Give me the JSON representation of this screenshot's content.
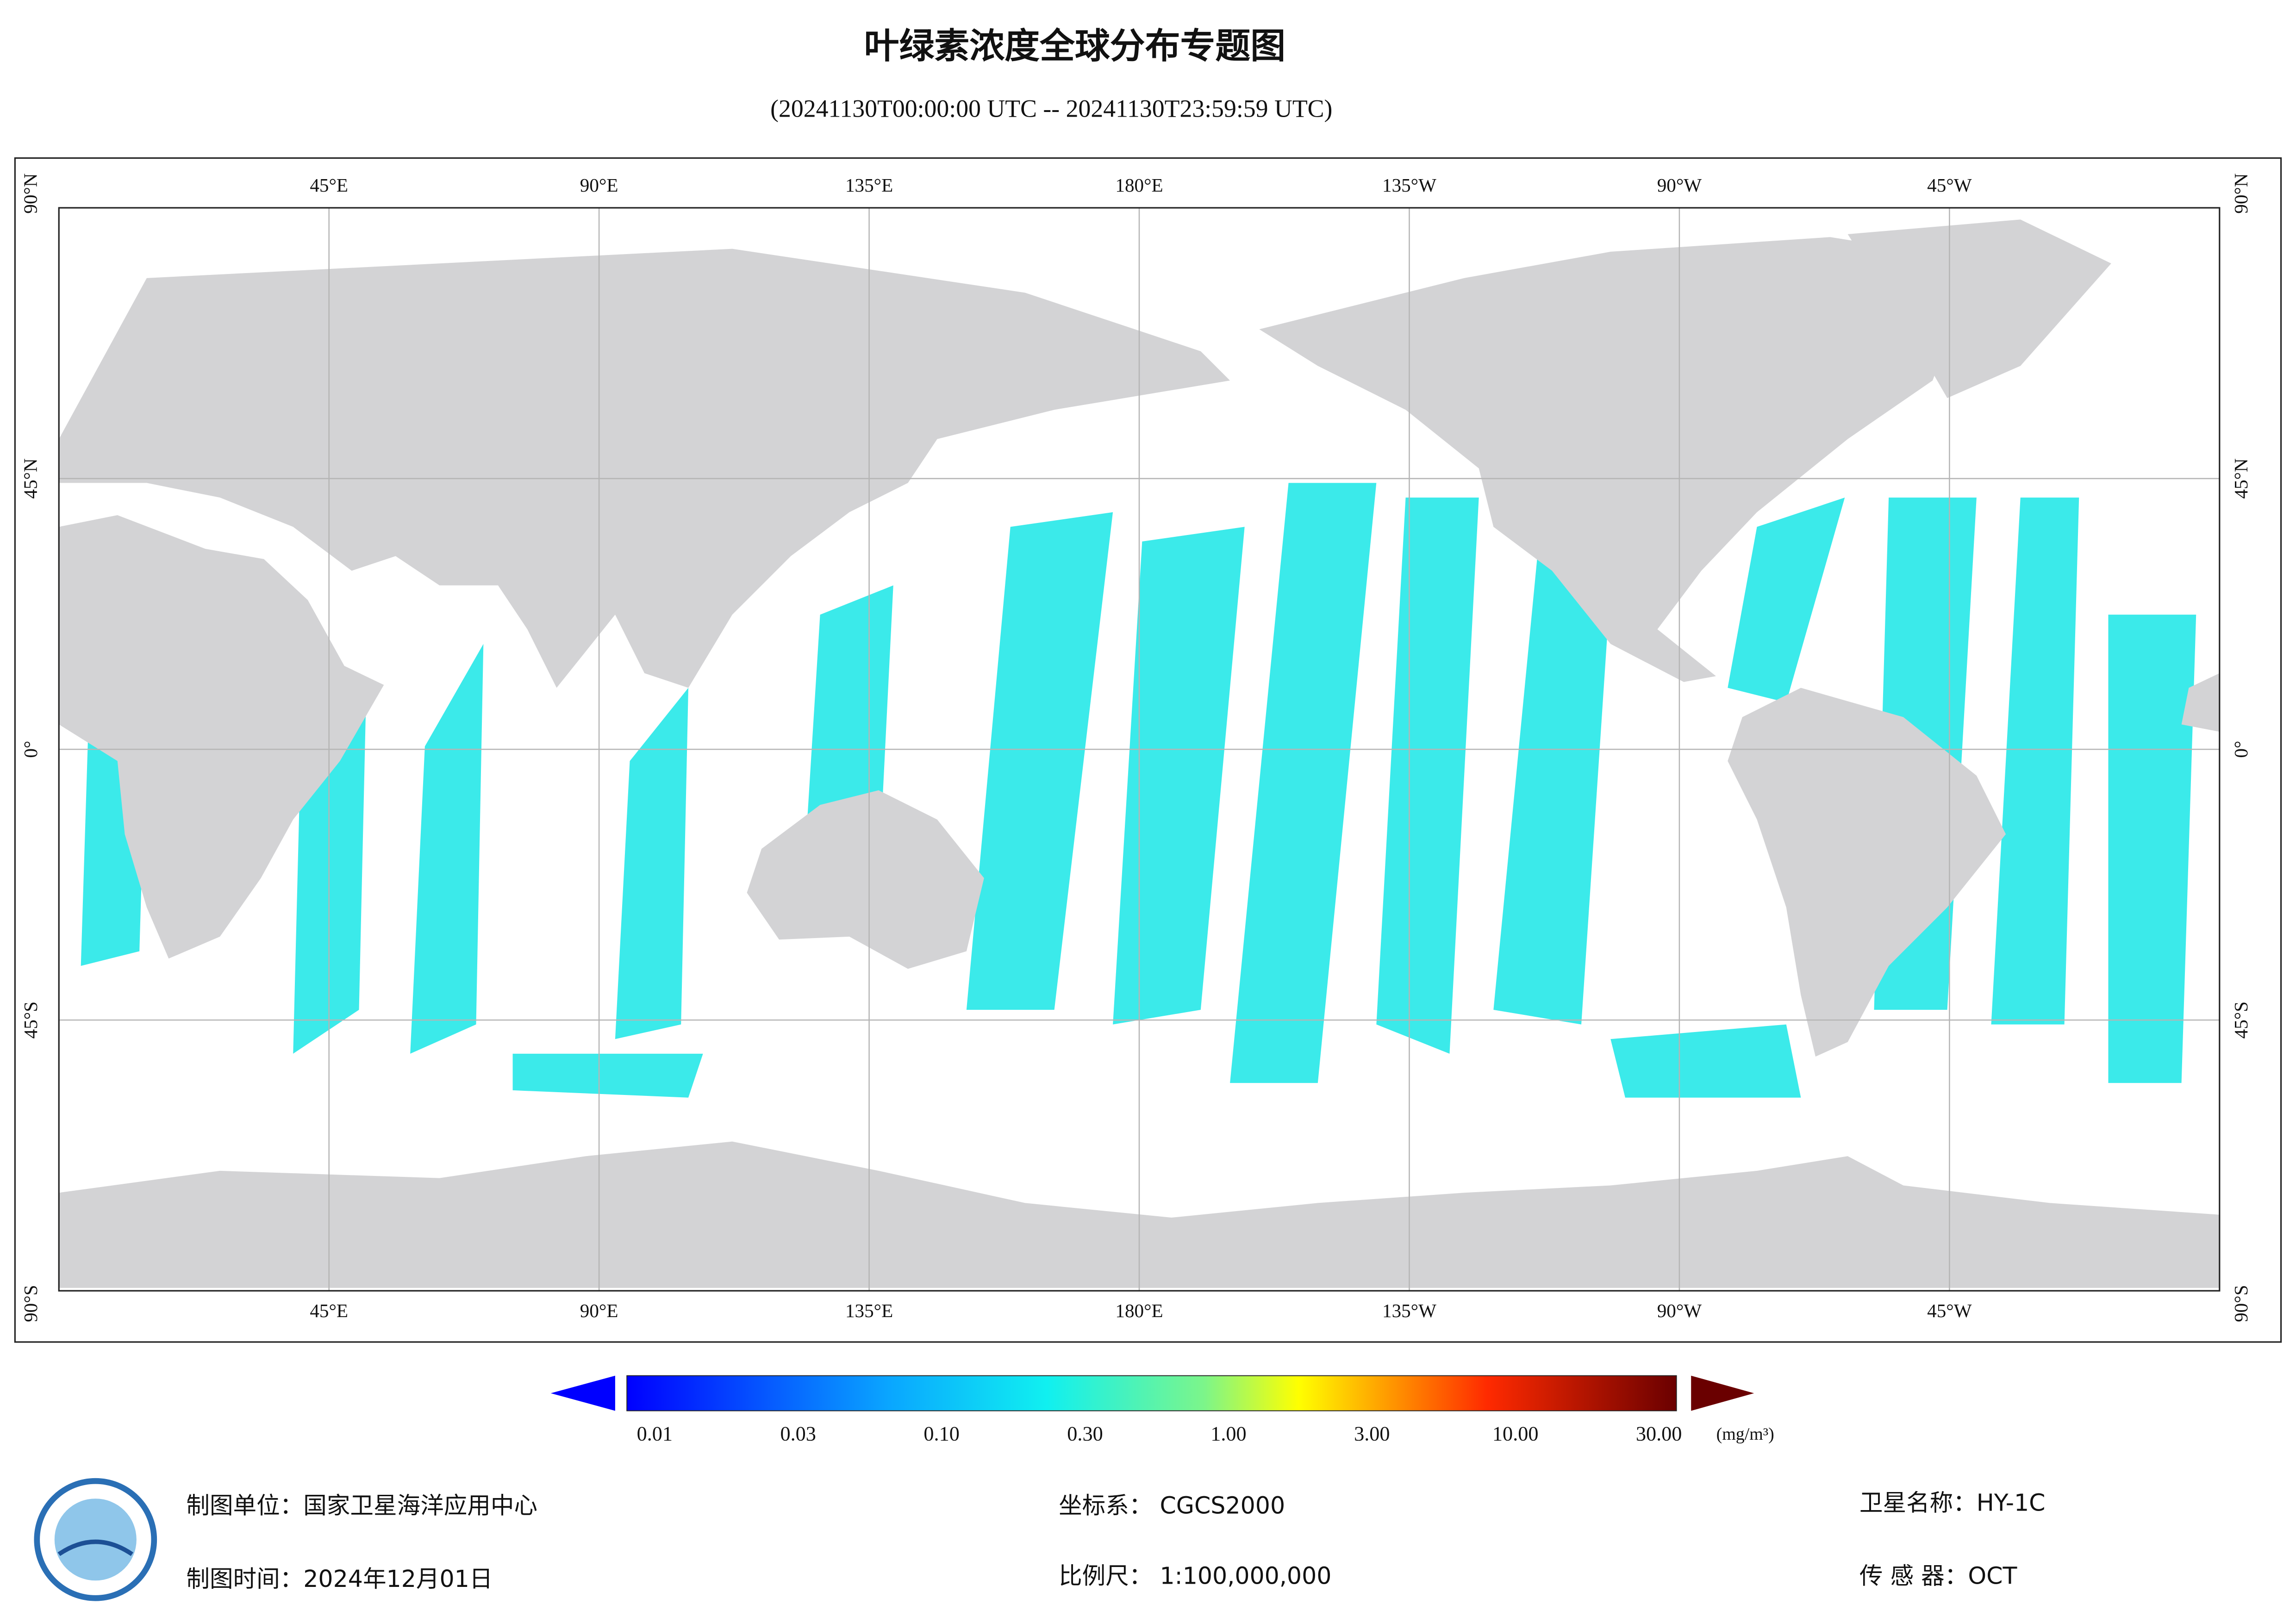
{
  "header": {
    "title": "叶绿素浓度全球分布专题图",
    "subtitle": "(20241130T00:00:00 UTC -- 20241130T23:59:59 UTC)"
  },
  "map": {
    "lon_labels": [
      "45°E",
      "90°E",
      "135°E",
      "180°E",
      "135°W",
      "90°W",
      "45°W"
    ],
    "lat_labels": [
      "90°N",
      "45°N",
      "0°",
      "45°S",
      "90°S"
    ]
  },
  "legend": {
    "labels": [
      "0.01",
      "0.03",
      "0.10",
      "0.30",
      "1.00",
      "3.00",
      "10.00",
      "30.00"
    ],
    "unit": "(mg/m³)"
  },
  "footer": {
    "producer": "制图单位：国家卫星海洋应用中心",
    "date": "制图时间：2024年12月01日",
    "crs": "坐标系：  CGCS2000",
    "scale": "比例尺：  1:100,000,000",
    "satellite": "卫星名称：HY-1C",
    "sensor": "传 感 器：OCT"
  }
}
